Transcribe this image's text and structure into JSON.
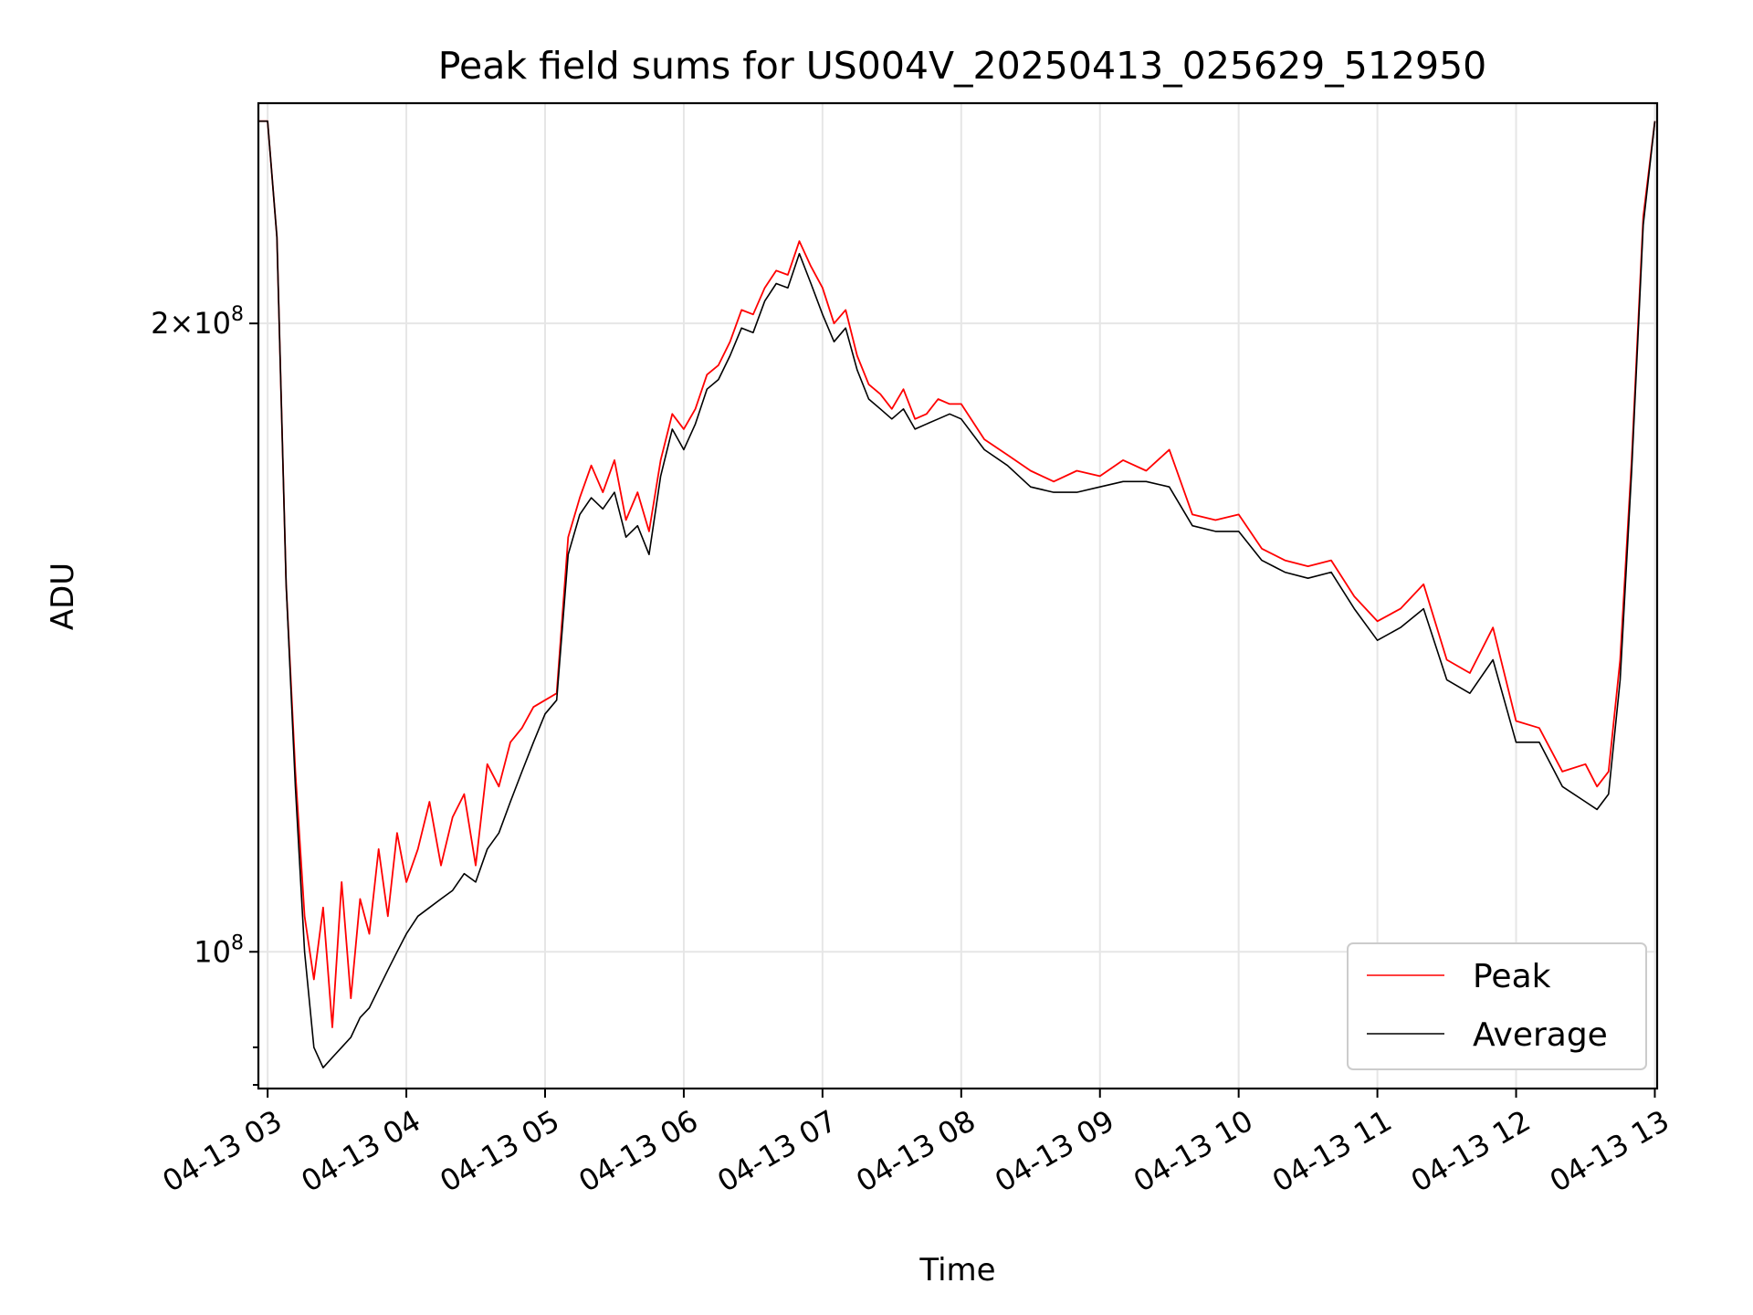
{
  "chart_data": {
    "type": "line",
    "title": "Peak field sums for US004V_20250413_025629_512950",
    "xlabel": "Time",
    "ylabel": "ADU",
    "yscale": "log",
    "grid": true,
    "legend_position": "lower-right",
    "xlim": [
      "2025-04-13 02:56",
      "2025-04-13 13:01"
    ],
    "ylim": [
      86000000.0,
      255000000.0
    ],
    "x_ticks": [
      "04-13 03",
      "04-13 04",
      "04-13 05",
      "04-13 06",
      "04-13 07",
      "04-13 08",
      "04-13 09",
      "04-13 10",
      "04-13 11",
      "04-13 12",
      "04-13 13"
    ],
    "y_ticks": [
      {
        "value": 100000000.0,
        "mantissa": "",
        "exponent": "8"
      },
      {
        "value": 200000000.0,
        "mantissa": "2",
        "exponent": "8"
      }
    ],
    "x": [
      "02:56",
      "03:00",
      "03:04",
      "03:08",
      "03:12",
      "03:16",
      "03:20",
      "03:24",
      "03:28",
      "03:32",
      "03:36",
      "03:40",
      "03:44",
      "03:48",
      "03:52",
      "03:56",
      "04:00",
      "04:05",
      "04:10",
      "04:15",
      "04:20",
      "04:25",
      "04:30",
      "04:35",
      "04:40",
      "04:45",
      "04:50",
      "04:55",
      "05:00",
      "05:05",
      "05:10",
      "05:15",
      "05:20",
      "05:25",
      "05:30",
      "05:35",
      "05:40",
      "05:45",
      "05:50",
      "05:55",
      "06:00",
      "06:05",
      "06:10",
      "06:15",
      "06:20",
      "06:25",
      "06:30",
      "06:35",
      "06:40",
      "06:45",
      "06:50",
      "06:55",
      "07:00",
      "07:05",
      "07:10",
      "07:15",
      "07:20",
      "07:25",
      "07:30",
      "07:35",
      "07:40",
      "07:45",
      "07:50",
      "07:55",
      "08:00",
      "08:10",
      "08:20",
      "08:30",
      "08:40",
      "08:50",
      "09:00",
      "09:10",
      "09:20",
      "09:30",
      "09:40",
      "09:50",
      "10:00",
      "10:10",
      "10:20",
      "10:30",
      "10:40",
      "10:50",
      "11:00",
      "11:10",
      "11:20",
      "11:30",
      "11:40",
      "11:50",
      "12:00",
      "12:10",
      "12:20",
      "12:30",
      "12:35",
      "12:40",
      "12:45",
      "12:50",
      "12:55",
      "13:00"
    ],
    "series": [
      {
        "name": "Peak",
        "color": "#ff0000",
        "values": [
          250000000.0,
          250000000.0,
          220000000.0,
          150000000.0,
          122000000.0,
          104000000.0,
          97000000.0,
          105000000.0,
          92000000.0,
          108000000.0,
          95000000.0,
          106000000.0,
          102000000.0,
          112000000.0,
          104000000.0,
          114000000.0,
          108000000.0,
          112000000.0,
          118000000.0,
          110000000.0,
          116000000.0,
          119000000.0,
          110000000.0,
          123000000.0,
          120000000.0,
          126000000.0,
          128000000.0,
          131000000.0,
          132000000.0,
          133000000.0,
          158000000.0,
          165000000.0,
          171000000.0,
          166000000.0,
          172000000.0,
          161000000.0,
          166000000.0,
          159000000.0,
          172000000.0,
          181000000.0,
          178000000.0,
          182000000.0,
          189000000.0,
          191000000.0,
          196000000.0,
          203000000.0,
          202000000.0,
          208000000.0,
          212000000.0,
          211000000.0,
          219000000.0,
          213000000.0,
          208000000.0,
          200000000.0,
          203000000.0,
          193000000.0,
          187000000.0,
          185000000.0,
          182000000.0,
          186000000.0,
          180000000.0,
          181000000.0,
          184000000.0,
          183000000.0,
          183000000.0,
          176000000.0,
          173000000.0,
          170000000.0,
          168000000.0,
          170000000.0,
          169000000.0,
          172000000.0,
          170000000.0,
          174000000.0,
          162000000.0,
          161000000.0,
          162000000.0,
          156000000.0,
          154000000.0,
          153000000.0,
          154000000.0,
          148000000.0,
          144000000.0,
          146000000.0,
          150000000.0,
          138000000.0,
          136000000.0,
          143000000.0,
          129000000.0,
          128000000.0,
          122000000.0,
          123000000.0,
          120000000.0,
          122000000.0,
          138000000.0,
          172000000.0,
          225000000.0,
          250000000.0
        ]
      },
      {
        "name": "Average",
        "color": "#000000",
        "values": [
          250000000.0,
          250000000.0,
          220000000.0,
          150000000.0,
          120000000.0,
          100000000.0,
          90000000.0,
          88000000.0,
          89000000.0,
          90000000.0,
          91000000.0,
          93000000.0,
          94000000.0,
          96000000.0,
          98000000.0,
          100000000.0,
          102000000.0,
          104000000.0,
          105000000.0,
          106000000.0,
          107000000.0,
          109000000.0,
          108000000.0,
          112000000.0,
          114000000.0,
          118000000.0,
          122000000.0,
          126000000.0,
          130000000.0,
          132000000.0,
          155000000.0,
          162000000.0,
          165000000.0,
          163000000.0,
          166000000.0,
          158000000.0,
          160000000.0,
          155000000.0,
          169000000.0,
          178000000.0,
          174000000.0,
          179000000.0,
          186000000.0,
          188000000.0,
          193000000.0,
          199000000.0,
          198000000.0,
          205000000.0,
          209000000.0,
          208000000.0,
          216000000.0,
          209000000.0,
          202000000.0,
          196000000.0,
          199000000.0,
          190000000.0,
          184000000.0,
          182000000.0,
          180000000.0,
          182000000.0,
          178000000.0,
          179000000.0,
          180000000.0,
          181000000.0,
          180000000.0,
          174000000.0,
          171000000.0,
          167000000.0,
          166000000.0,
          166000000.0,
          167000000.0,
          168000000.0,
          168000000.0,
          167000000.0,
          160000000.0,
          159000000.0,
          159000000.0,
          154000000.0,
          152000000.0,
          151000000.0,
          152000000.0,
          146000000.0,
          141000000.0,
          143000000.0,
          146000000.0,
          135000000.0,
          133000000.0,
          138000000.0,
          126000000.0,
          126000000.0,
          120000000.0,
          118000000.0,
          117000000.0,
          119000000.0,
          135000000.0,
          170000000.0,
          223000000.0,
          250000000.0
        ]
      }
    ]
  }
}
